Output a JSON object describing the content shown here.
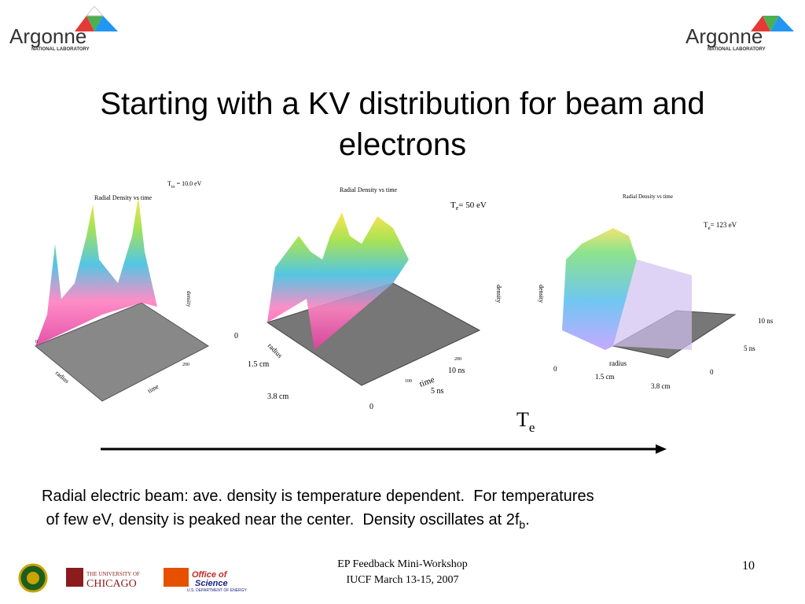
{
  "logos": {
    "left": {
      "name": "Argonne",
      "sub": "NATIONAL LABORATORY"
    },
    "right": {
      "name": "Argonne",
      "sub": "NATIONAL LABORATORY"
    }
  },
  "title": {
    "line1": "Starting with a KV distribution for beam and",
    "line2": "electrons"
  },
  "plots": [
    {
      "title": "Radial Density vs time",
      "temperature": {
        "symbol": "T",
        "subscript": "io",
        "rest": " = 10.0 eV"
      },
      "labels": {
        "radius": "radius",
        "time": "time",
        "density": "density",
        "r0": "0",
        "t200": "200"
      }
    },
    {
      "title": "Radial Density vs time",
      "temperature": {
        "symbol": "T",
        "subscript": "e",
        "rest": "= 50 eV"
      },
      "labels": {
        "zero_left": "0",
        "r1": "1.5 cm",
        "radius": "radius",
        "r2": "3.8 cm",
        "zero_bottom": "0",
        "time": "time",
        "t1": "5 ns",
        "t2": "10 ns",
        "density": "density",
        "t100": "100",
        "t200": "200"
      }
    },
    {
      "title": "Radial Density vs time",
      "temperature": {
        "symbol": "T",
        "subscript": "e",
        "rest": "= 123 eV"
      },
      "labels": {
        "density": "density",
        "radius": "radius",
        "r1": "1.5 cm",
        "r2": "3.8 cm",
        "zero_left": "0",
        "zero_right": "0",
        "t1": "5 ns",
        "t2": "10 ns"
      }
    }
  ],
  "arrow_label": {
    "symbol": "T",
    "subscript": "e"
  },
  "caption": {
    "line1": "Radial electric beam: ave. density is temperature dependent.  For temperatures",
    "line2": {
      "text": " of few eV, density is peaked near the center.  Density oscillates at 2f",
      "subscript": "b",
      "end": "."
    }
  },
  "footer": {
    "line1": "EP Feedback Mini-Workshop",
    "line2": "IUCF March 13-15, 2007",
    "page": "10",
    "chicago": {
      "top": "THE UNIVERSITY OF",
      "name": "CHICAGO"
    },
    "science": {
      "top": "Office of",
      "name": "Science",
      "sub": "U.S. DEPARTMENT OF ENERGY"
    }
  }
}
